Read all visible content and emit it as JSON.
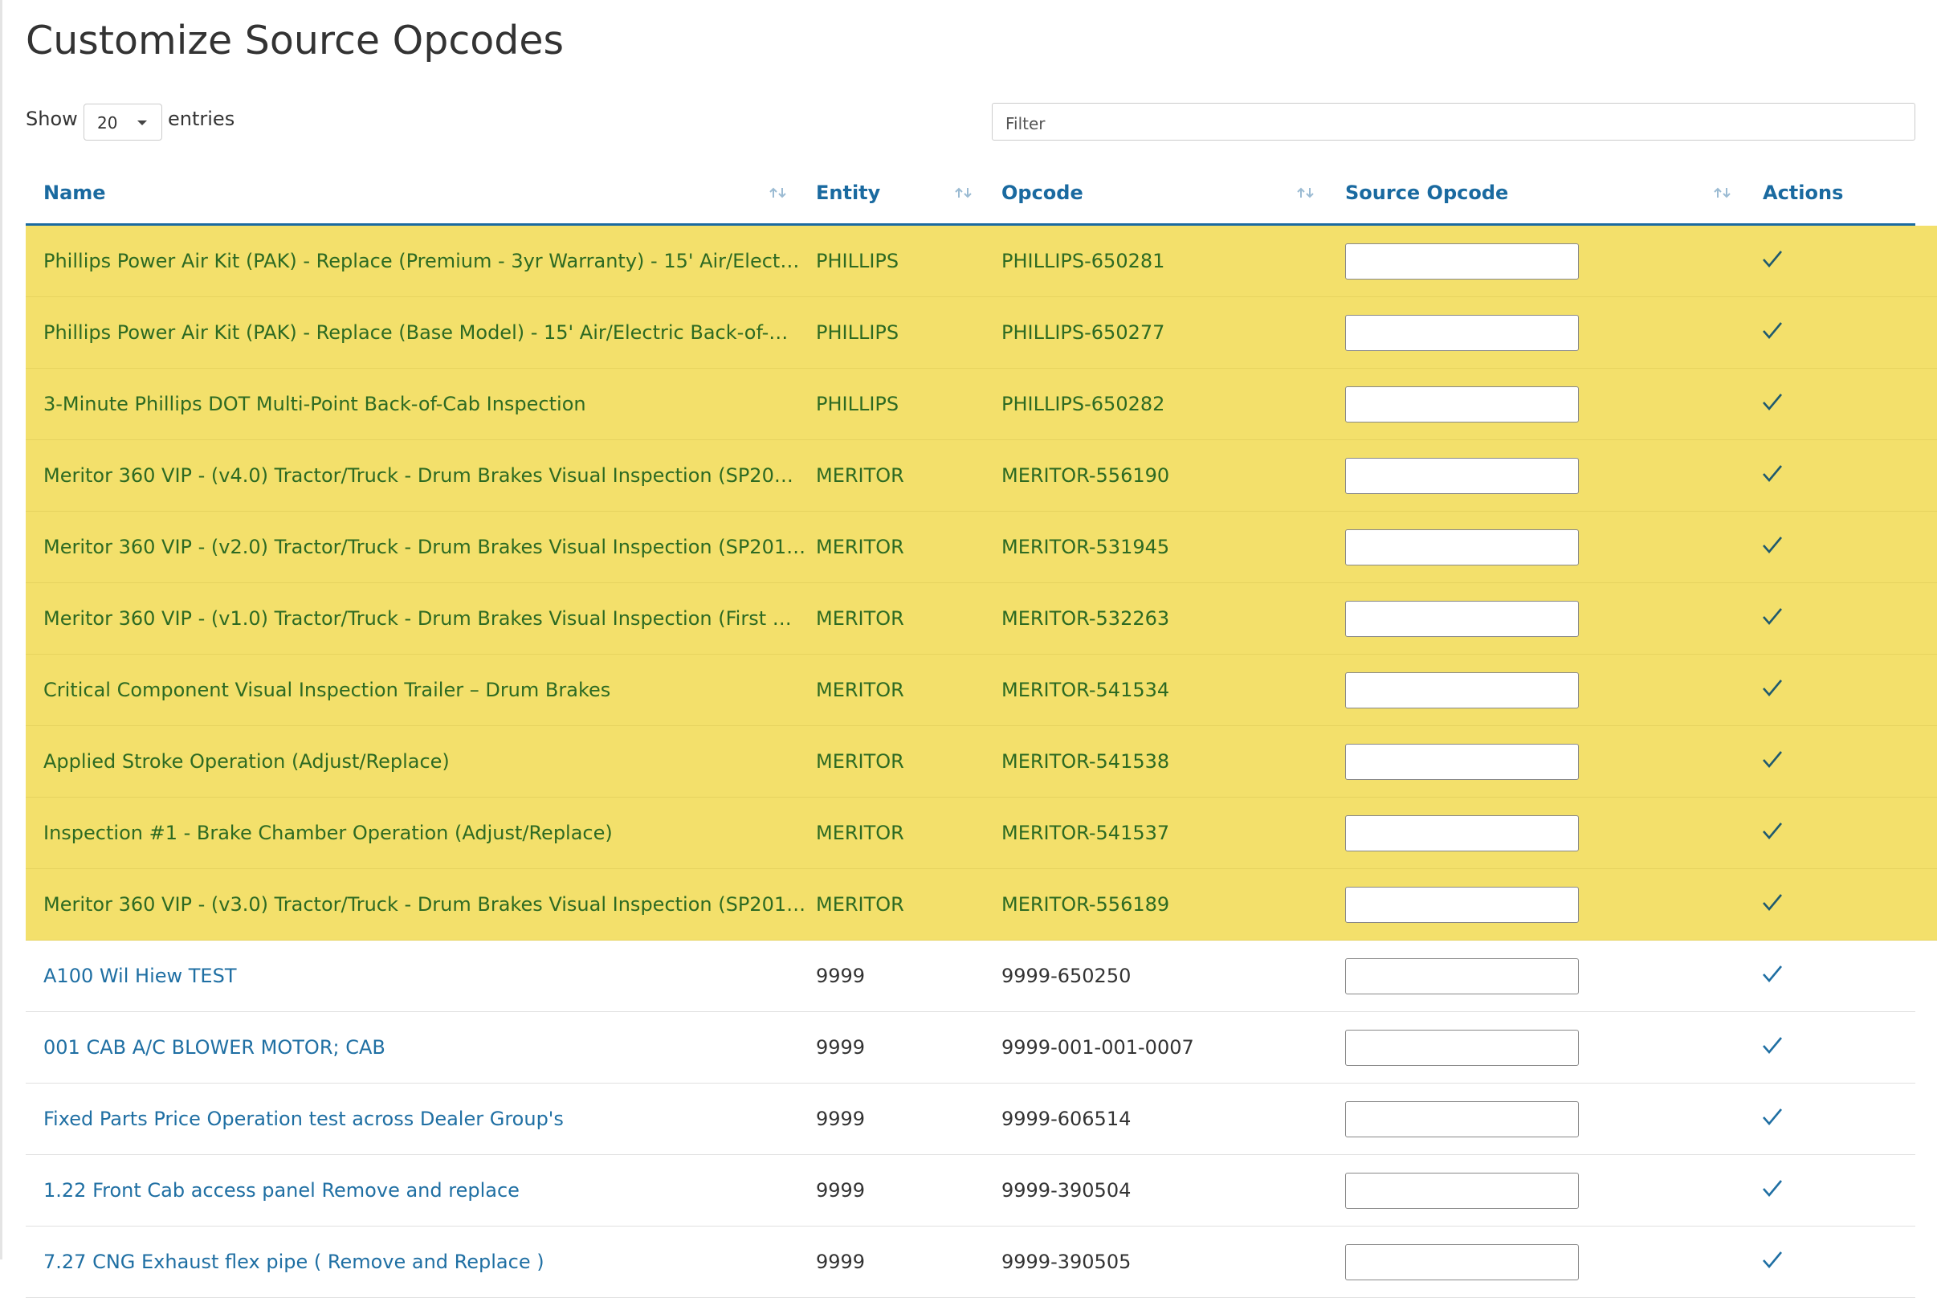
{
  "header": {
    "title": "Customize Source Opcodes"
  },
  "controls": {
    "show_label": "Show",
    "page_size": "20",
    "entries_label": "entries",
    "filter_placeholder": "Filter"
  },
  "table": {
    "headers": [
      "Name",
      "Entity",
      "Opcode",
      "Source Opcode",
      "Actions"
    ],
    "rows": [
      {
        "name": "Phillips Power Air Kit (PAK) - Replace (Premium - 3yr Warranty) - 15' Air/Elect…",
        "entity": "PHILLIPS",
        "opcode": "PHILLIPS-650281",
        "highlighted": true
      },
      {
        "name": "Phillips Power Air Kit (PAK) - Replace (Base Model) - 15' Air/Electric Back-of-…",
        "entity": "PHILLIPS",
        "opcode": "PHILLIPS-650277",
        "highlighted": true
      },
      {
        "name": "3-Minute Phillips DOT Multi-Point Back-of-Cab Inspection",
        "entity": "PHILLIPS",
        "opcode": "PHILLIPS-650282",
        "highlighted": true
      },
      {
        "name": "Meritor 360 VIP - (v4.0) Tractor/Truck - Drum Brakes Visual Inspection (SP20…",
        "entity": "MERITOR",
        "opcode": "MERITOR-556190",
        "highlighted": true
      },
      {
        "name": "Meritor 360 VIP - (v2.0) Tractor/Truck - Drum Brakes Visual Inspection (SP201…",
        "entity": "MERITOR",
        "opcode": "MERITOR-531945",
        "highlighted": true
      },
      {
        "name": "Meritor 360 VIP - (v1.0) Tractor/Truck - Drum Brakes Visual Inspection (First …",
        "entity": "MERITOR",
        "opcode": "MERITOR-532263",
        "highlighted": true
      },
      {
        "name": "Critical Component Visual Inspection Trailer – Drum Brakes",
        "entity": "MERITOR",
        "opcode": "MERITOR-541534",
        "highlighted": true
      },
      {
        "name": "Applied Stroke Operation (Adjust/Replace)",
        "entity": "MERITOR",
        "opcode": "MERITOR-541538",
        "highlighted": true
      },
      {
        "name": "Inspection #1 - Brake Chamber Operation (Adjust/Replace)",
        "entity": "MERITOR",
        "opcode": "MERITOR-541537",
        "highlighted": true
      },
      {
        "name": "Meritor 360 VIP - (v3.0) Tractor/Truck - Drum Brakes Visual Inspection (SP201…",
        "entity": "MERITOR",
        "opcode": "MERITOR-556189",
        "highlighted": true
      },
      {
        "name": "A100 Wil Hiew TEST",
        "entity": "9999",
        "opcode": "9999-650250",
        "highlighted": false
      },
      {
        "name": "001 CAB A/C BLOWER MOTOR; CAB",
        "entity": "9999",
        "opcode": "9999-001-001-0007",
        "highlighted": false
      },
      {
        "name": "Fixed Parts Price Operation test across Dealer Group's",
        "entity": "9999",
        "opcode": "9999-606514",
        "highlighted": false
      },
      {
        "name": "1.22 Front Cab access panel Remove and replace",
        "entity": "9999",
        "opcode": "9999-390504",
        "highlighted": false
      },
      {
        "name": "7.27 CNG Exhaust flex pipe ( Remove and Replace )",
        "entity": "9999",
        "opcode": "9999-390505",
        "highlighted": false
      }
    ]
  }
}
